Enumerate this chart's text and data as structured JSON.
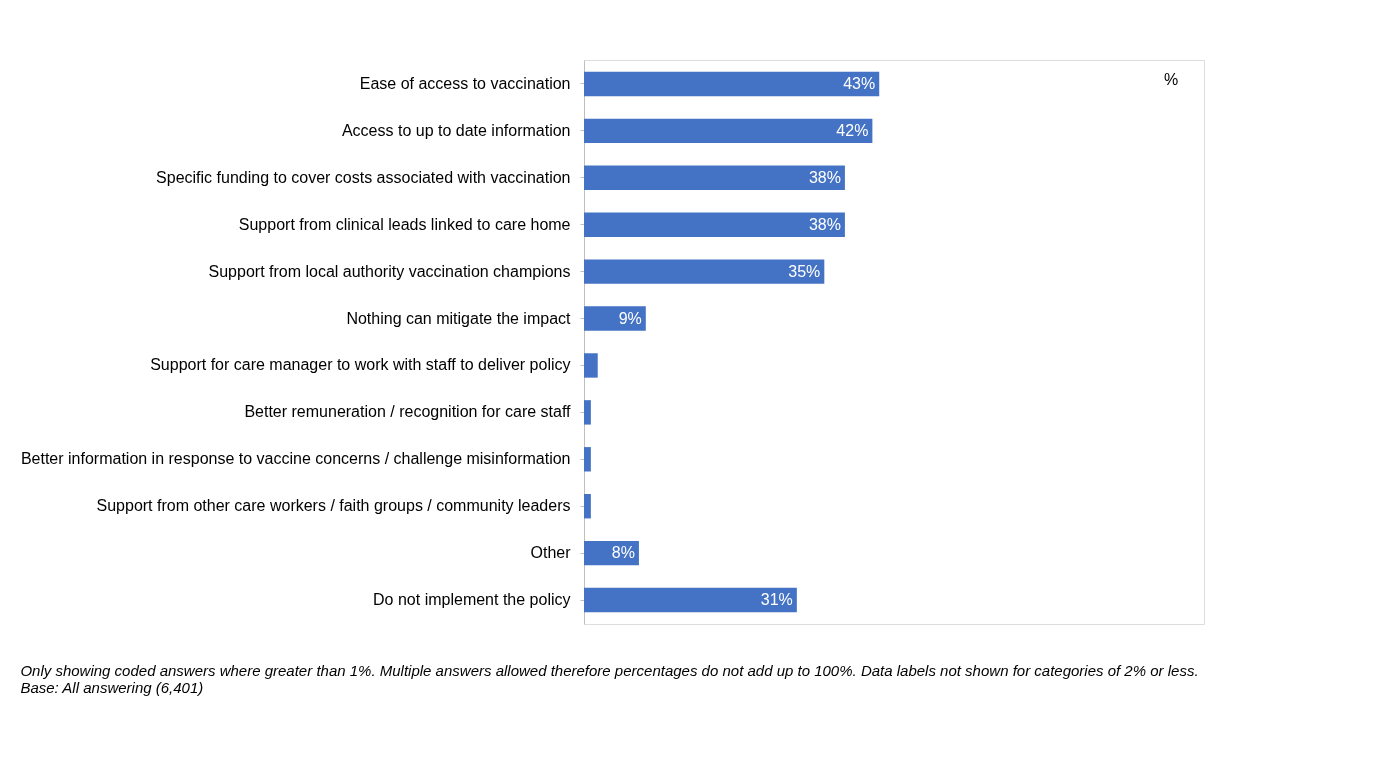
{
  "chart_data": {
    "type": "bar",
    "orientation": "horizontal",
    "categories": [
      "Ease of access to vaccination",
      "Access to up to date information",
      "Specific funding to cover costs associated with vaccination",
      "Support from clinical leads linked to care home",
      "Support from local authority vaccination champions",
      "Nothing can mitigate the impact",
      "Support for care manager to work with staff to deliver policy",
      "Better remuneration / recognition for care staff",
      "Better information in response to vaccine concerns / challenge misinformation",
      "Support from other care workers / faith groups / community leaders",
      "Other",
      "Do not implement the policy"
    ],
    "values": [
      43,
      42,
      38,
      38,
      35,
      9,
      2,
      1,
      1,
      1,
      8,
      31
    ],
    "value_labels": [
      "43%",
      "42%",
      "38%",
      "38%",
      "35%",
      "9%",
      null,
      null,
      null,
      null,
      "8%",
      "31%"
    ],
    "color": "#4472c4",
    "grid": false,
    "annotations": [
      "%",
      "Only showing coded answers where greater than 1%.  Multiple answers allowed therefore percentages do not add up to 100%. Data labels not shown for categories of 2% or less.",
      "Base: All answering (6,401)"
    ]
  }
}
